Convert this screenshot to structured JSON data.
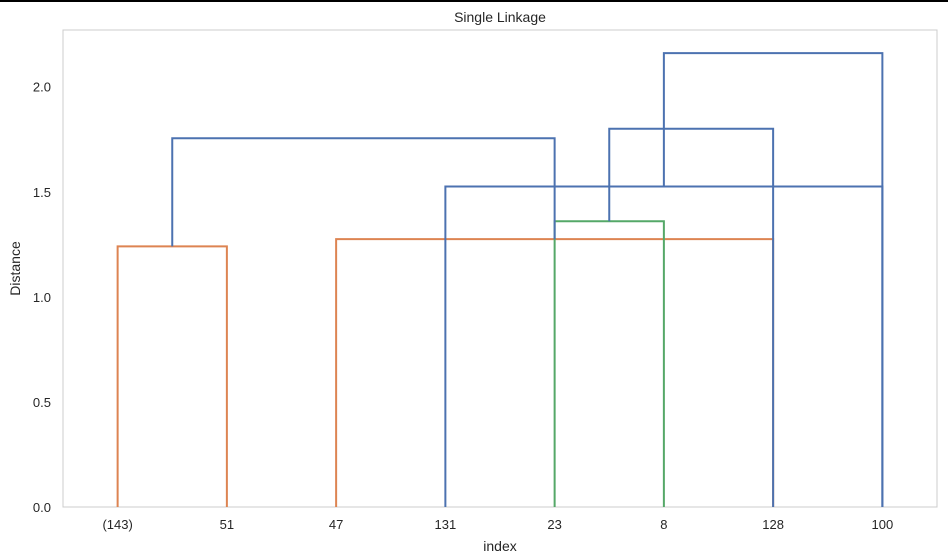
{
  "chart_data": {
    "type": "dendrogram",
    "title": "Single Linkage",
    "xlabel": "index",
    "ylabel": "Distance",
    "ylim": [
      0,
      2.27
    ],
    "yticks": [
      0.0,
      0.5,
      1.0,
      1.5,
      2.0
    ],
    "ytick_labels": [
      "0.0",
      "0.5",
      "1.0",
      "1.5",
      "2.0"
    ],
    "leaves": [
      "(143)",
      "51",
      "47",
      "131",
      "23",
      "8",
      "128",
      "100"
    ],
    "grid": false,
    "colors": {
      "cluster_a": "#dd8452",
      "cluster_b": "#55a868",
      "above_threshold": "#4c72b0",
      "frame": "#cccccc"
    },
    "links": [
      {
        "left": 0,
        "right": 1,
        "height": 1.24,
        "color": "cluster_a"
      },
      {
        "left": 6,
        "right": 2,
        "height": 1.275,
        "color": "cluster_a"
      },
      {
        "left": 4,
        "right": 5,
        "height": 1.36,
        "color": "cluster_b"
      },
      {
        "left": 7,
        "right": 3,
        "height": 1.525,
        "color": "above_threshold"
      },
      {
        "left": 8,
        "right": 9,
        "height": 1.755,
        "color": "above_threshold"
      },
      {
        "left": 10,
        "right": 6,
        "height": 1.8,
        "color": "above_threshold"
      },
      {
        "left": 11,
        "right": 7,
        "height": 2.16,
        "color": "above_threshold"
      }
    ]
  }
}
